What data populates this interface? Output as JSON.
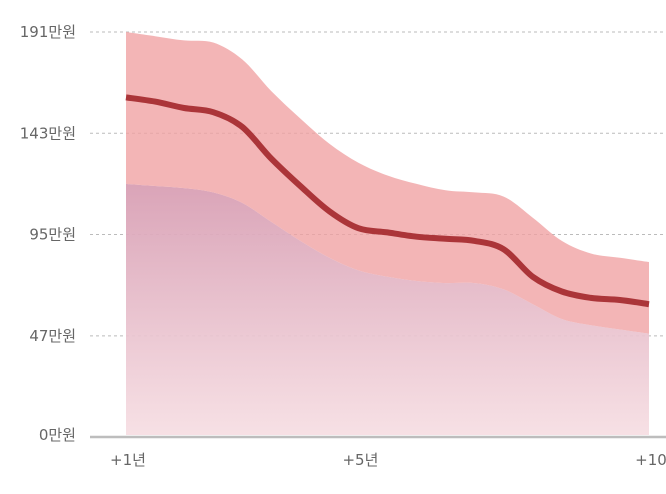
{
  "chart_data": {
    "type": "area",
    "y_ticks": [
      "191만원",
      "143만원",
      "95만원",
      "47만원",
      "0만원"
    ],
    "y_tick_values": [
      191,
      143,
      95,
      47,
      0
    ],
    "x_ticks": [
      "+1년",
      "+5년",
      "+10"
    ],
    "x_tick_values": [
      1,
      5,
      10
    ],
    "ylim": [
      0,
      191
    ],
    "xlim": [
      1,
      10
    ],
    "grid": "horizontal-dashed",
    "x": [
      1,
      1.5,
      2,
      2.5,
      3,
      3.5,
      4,
      4.5,
      5,
      5.5,
      6,
      6.5,
      7,
      7.5,
      8,
      8.5,
      9,
      9.5,
      10
    ],
    "series": [
      {
        "role": "band-upper",
        "values": [
          191,
          189,
          187,
          186,
          178,
          163,
          150,
          138,
          129,
          123,
          119,
          116,
          115,
          113,
          103,
          92,
          86,
          84,
          82
        ]
      },
      {
        "role": "median",
        "values": [
          160,
          158,
          155,
          153,
          146,
          131,
          118,
          106,
          98,
          96,
          94,
          93,
          92,
          88,
          75,
          68,
          65,
          64,
          62
        ]
      },
      {
        "role": "band-lower",
        "values": [
          119,
          118,
          117,
          115,
          110,
          101,
          92,
          84,
          78,
          75,
          73,
          72,
          72,
          69,
          62,
          55,
          52,
          50,
          48
        ]
      }
    ],
    "colors": {
      "band": "#f0a0a2",
      "median_line": "#a52a2f",
      "lower_area_top": "#d89fb4",
      "lower_area_bottom": "#f6dde2",
      "grid": "#bbbbbb",
      "axis": "#bdbdbd",
      "tick_text": "#666666"
    }
  }
}
